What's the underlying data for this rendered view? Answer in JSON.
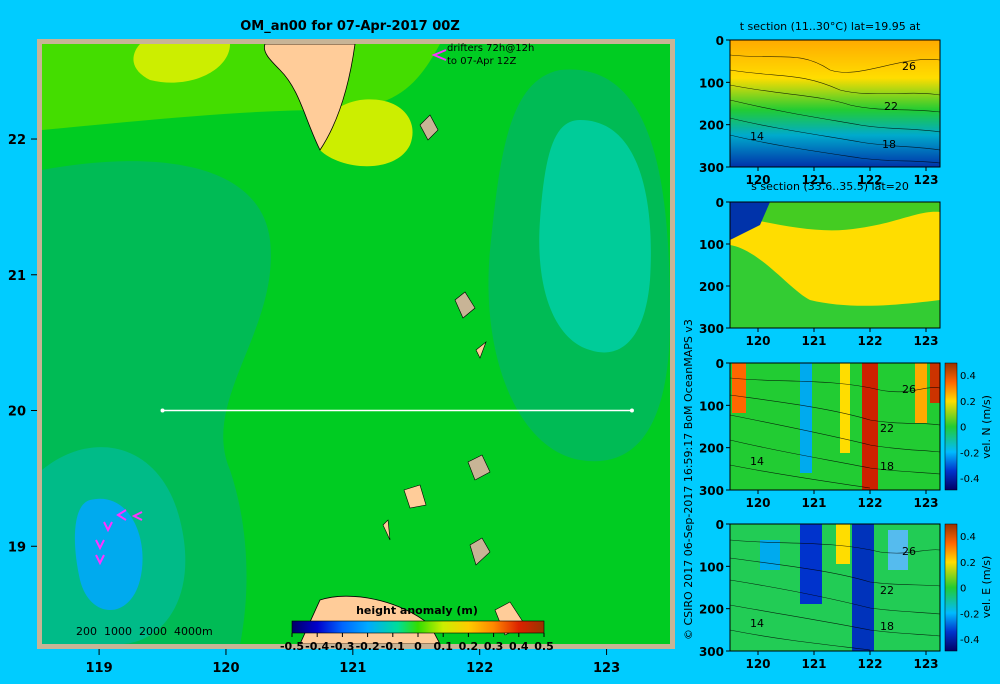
{
  "colors": {
    "background": "#00ccff",
    "frame": "#c8b496",
    "land": "#ffcc99",
    "drifter": "#ff33ff",
    "section_line": "#ffffff"
  },
  "chart_data": [
    {
      "type": "heatmap",
      "title": "OM_an00 for 07-Apr-2017 00Z",
      "x_ticks": [
        "119",
        "120",
        "121",
        "122",
        "123"
      ],
      "x_tick_values": [
        119,
        120,
        121,
        122,
        123
      ],
      "y_ticks": [
        "19",
        "20",
        "21",
        "22"
      ],
      "y_tick_values": [
        19,
        20,
        21,
        22
      ],
      "xlim": [
        118.55,
        123.5
      ],
      "ylim": [
        18.28,
        22.7
      ],
      "section_line": {
        "lat": 20,
        "lon_start": 119.5,
        "lon_end": 123.2
      },
      "drifter_note": [
        "drifters 72h@12h",
        "to 07-Apr 12Z"
      ],
      "depth_legend": "200  1000  2000  4000m",
      "colorbar": {
        "label": "height anomaly (m)",
        "ticks": [
          "-0.5",
          "-0.4",
          "-0.3",
          "-0.2",
          "-0.1",
          "0",
          "0.1",
          "0.2",
          "0.3",
          "0.4",
          "0.5"
        ],
        "range": [
          -0.5,
          0.5
        ]
      }
    },
    {
      "type": "heatmap",
      "title": "t section (11..30°C) lat=19.95 at",
      "x_ticks": [
        "120",
        "121",
        "122",
        "123"
      ],
      "y_ticks": [
        "0",
        "100",
        "200",
        "300"
      ],
      "contour_labels": [
        "26",
        "22",
        "18",
        "14"
      ]
    },
    {
      "type": "heatmap",
      "title": "s section (33.6..35.5) lat=20",
      "x_ticks": [
        "120",
        "121",
        "122",
        "123"
      ],
      "y_ticks": [
        "0",
        "100",
        "200",
        "300"
      ]
    },
    {
      "type": "heatmap",
      "title": "",
      "x_ticks": [
        "120",
        "121",
        "122",
        "123"
      ],
      "y_ticks": [
        "0",
        "100",
        "200",
        "300"
      ],
      "contour_labels": [
        "26",
        "22",
        "18",
        "14"
      ],
      "colorbar": {
        "label": "vel. N (m/s)",
        "ticks": [
          "0.4",
          "0.2",
          "0",
          "-0.2",
          "-0.4"
        ]
      }
    },
    {
      "type": "heatmap",
      "title": "",
      "x_ticks": [
        "120",
        "121",
        "122",
        "123"
      ],
      "y_ticks": [
        "0",
        "100",
        "200",
        "300"
      ],
      "contour_labels": [
        "26",
        "22",
        "18",
        "14"
      ],
      "colorbar": {
        "label": "vel. E (m/s)",
        "ticks": [
          "0.4",
          "0.2",
          "0",
          "-0.2",
          "-0.4"
        ]
      }
    }
  ],
  "credit": "© CSIRO 2017   06-Sep-2017 16:59:17 BoM OceanMAPS v3"
}
